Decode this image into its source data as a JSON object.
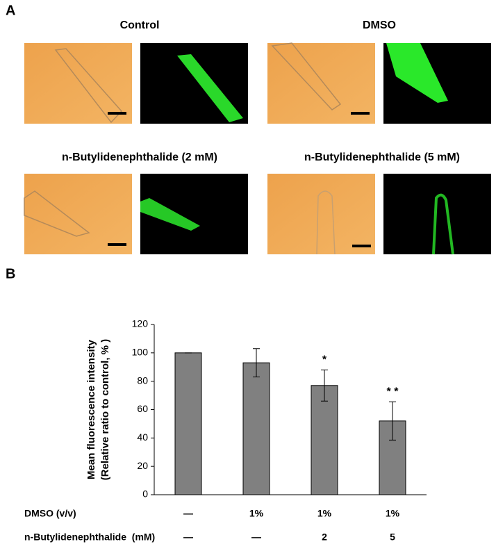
{
  "panel_a": {
    "label": "A",
    "groups": [
      {
        "title": "Control"
      },
      {
        "title": "DMSO"
      },
      {
        "title": "n-Butylidenephthalide (2 mM)"
      },
      {
        "title": "n-Butylidenephthalide (5 mM)"
      }
    ]
  },
  "chart_data": {
    "type": "bar",
    "panel_label": "B",
    "y_label": [
      "Mean fluorescence intensity",
      "(Relative ratio to control, % )"
    ],
    "categories": [
      null,
      null,
      null,
      null
    ],
    "values": [
      100,
      93,
      77,
      52
    ],
    "errors": [
      0,
      10,
      11,
      13.5
    ],
    "annotations": [
      null,
      null,
      "*",
      "* *"
    ],
    "color": "#808080",
    "ylim": [
      0,
      120
    ],
    "yticks": [
      0,
      20,
      40,
      60,
      80,
      100,
      120
    ],
    "conditions": [
      {
        "label": "DMSO (v/v)",
        "values": [
          "—",
          "1%",
          "1%",
          "1%"
        ]
      },
      {
        "label": "n-Butylidenephthalide  (mM)",
        "values": [
          "—",
          "—",
          "2",
          "5"
        ]
      }
    ]
  }
}
